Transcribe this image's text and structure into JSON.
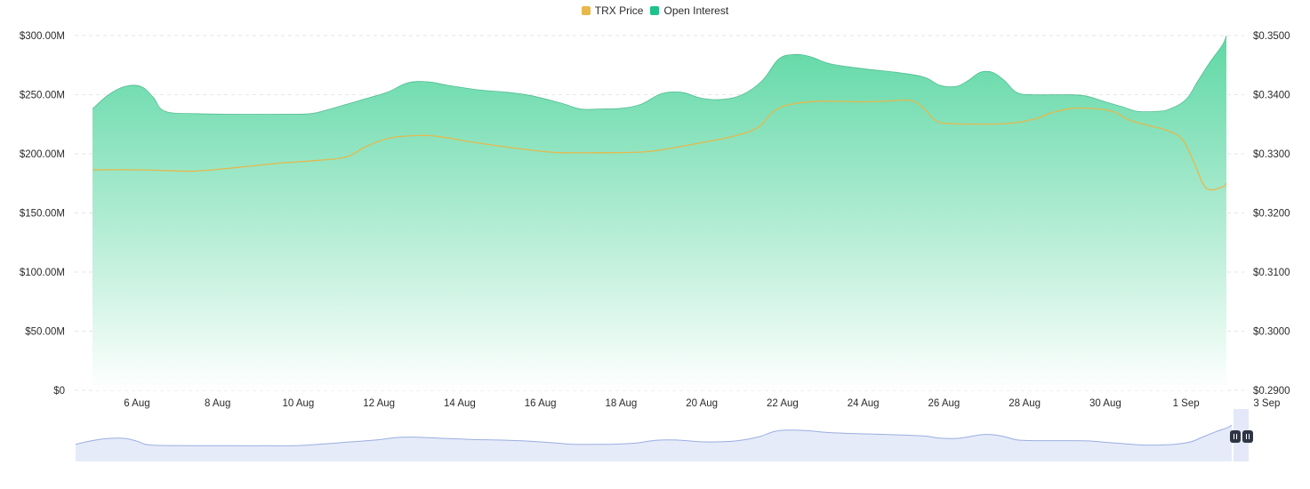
{
  "legend": {
    "items": [
      {
        "label": "TRX Price",
        "color": "#e8b84a"
      },
      {
        "label": "Open Interest",
        "color": "#1ec28b"
      }
    ]
  },
  "colors": {
    "oi_fill_top": "#56d6a0",
    "oi_fill_bottom": "#ffffff",
    "oi_line": "#1f9f6e",
    "price_line": "#e3b94e",
    "grid": "#e6e6e6",
    "nav_fill": "#e6ebf9",
    "nav_line": "#9aaee0",
    "nav_selection": "#dfe4f7",
    "nav_handle": "#2f3545"
  },
  "chart_data": {
    "type": "area",
    "title": "",
    "x_ticks": [
      "6 Aug",
      "8 Aug",
      "10 Aug",
      "12 Aug",
      "14 Aug",
      "16 Aug",
      "18 Aug",
      "20 Aug",
      "22 Aug",
      "24 Aug",
      "26 Aug",
      "28 Aug",
      "30 Aug",
      "1 Sep",
      "3 Sep"
    ],
    "x_range": [
      4.9,
      33.0
    ],
    "y_left": {
      "label": "",
      "range": [
        0,
        300000000
      ],
      "ticks": [
        "$0",
        "$50.00M",
        "$100.00M",
        "$150.00M",
        "$200.00M",
        "$250.00M",
        "$300.00M"
      ]
    },
    "y_right": {
      "label": "",
      "range": [
        0.29,
        0.35
      ],
      "ticks": [
        "$0.2900",
        "$0.3000",
        "$0.3100",
        "$0.3200",
        "$0.3300",
        "$0.3400",
        "$0.3500"
      ]
    },
    "grid": true,
    "legend_position": "top-center",
    "series": [
      {
        "name": "Open Interest",
        "axis": "left",
        "points": [
          [
            4.9,
            238
          ],
          [
            5.3,
            250
          ],
          [
            5.7,
            257
          ],
          [
            6.1,
            257
          ],
          [
            6.4,
            248
          ],
          [
            6.7,
            236
          ],
          [
            7.5,
            234
          ],
          [
            8.5,
            233.5
          ],
          [
            9.5,
            233.5
          ],
          [
            10.3,
            234
          ],
          [
            10.8,
            238
          ],
          [
            11.5,
            245
          ],
          [
            12.2,
            252
          ],
          [
            12.7,
            260
          ],
          [
            13.2,
            261
          ],
          [
            13.7,
            258
          ],
          [
            14.5,
            254
          ],
          [
            15.2,
            252
          ],
          [
            15.8,
            249
          ],
          [
            16.5,
            243
          ],
          [
            17.0,
            238
          ],
          [
            17.5,
            238
          ],
          [
            18.0,
            238.5
          ],
          [
            18.5,
            242
          ],
          [
            19.0,
            251
          ],
          [
            19.5,
            252
          ],
          [
            20.0,
            247
          ],
          [
            20.5,
            246
          ],
          [
            21.0,
            250
          ],
          [
            21.5,
            262
          ],
          [
            21.9,
            280
          ],
          [
            22.3,
            284
          ],
          [
            22.7,
            282
          ],
          [
            23.2,
            276
          ],
          [
            24.0,
            272
          ],
          [
            24.8,
            269
          ],
          [
            25.5,
            265
          ],
          [
            25.9,
            258
          ],
          [
            26.3,
            257
          ],
          [
            26.6,
            262
          ],
          [
            26.9,
            269
          ],
          [
            27.2,
            269
          ],
          [
            27.5,
            262
          ],
          [
            27.8,
            252
          ],
          [
            28.2,
            250
          ],
          [
            29.0,
            250
          ],
          [
            29.5,
            249
          ],
          [
            30.0,
            244
          ],
          [
            30.4,
            240
          ],
          [
            30.8,
            236
          ],
          [
            31.3,
            236
          ],
          [
            31.6,
            238
          ],
          [
            32.0,
            246
          ],
          [
            32.3,
            262
          ],
          [
            32.6,
            278
          ],
          [
            32.9,
            292
          ],
          [
            33.0,
            300
          ]
        ]
      },
      {
        "name": "TRX Price",
        "axis": "right",
        "points": [
          [
            4.9,
            0.3273
          ],
          [
            6.0,
            0.3273
          ],
          [
            7.0,
            0.3271
          ],
          [
            7.5,
            0.3271
          ],
          [
            8.5,
            0.3277
          ],
          [
            9.5,
            0.3284
          ],
          [
            10.5,
            0.3289
          ],
          [
            11.2,
            0.3295
          ],
          [
            11.7,
            0.3313
          ],
          [
            12.3,
            0.3327
          ],
          [
            13.0,
            0.3331
          ],
          [
            13.5,
            0.3329
          ],
          [
            14.2,
            0.3321
          ],
          [
            15.0,
            0.3313
          ],
          [
            15.8,
            0.3306
          ],
          [
            16.5,
            0.3302
          ],
          [
            17.5,
            0.3302
          ],
          [
            18.5,
            0.3303
          ],
          [
            19.2,
            0.3309
          ],
          [
            20.0,
            0.3319
          ],
          [
            20.8,
            0.333
          ],
          [
            21.4,
            0.3345
          ],
          [
            21.8,
            0.3373
          ],
          [
            22.3,
            0.3385
          ],
          [
            23.0,
            0.3389
          ],
          [
            24.0,
            0.3388
          ],
          [
            24.8,
            0.339
          ],
          [
            25.2,
            0.339
          ],
          [
            25.5,
            0.3377
          ],
          [
            25.8,
            0.3356
          ],
          [
            26.2,
            0.3351
          ],
          [
            27.5,
            0.3351
          ],
          [
            28.2,
            0.3358
          ],
          [
            28.7,
            0.337
          ],
          [
            29.2,
            0.3377
          ],
          [
            29.8,
            0.3376
          ],
          [
            30.2,
            0.3371
          ],
          [
            30.6,
            0.3357
          ],
          [
            31.0,
            0.3349
          ],
          [
            31.5,
            0.334
          ],
          [
            31.9,
            0.3325
          ],
          [
            32.2,
            0.3285
          ],
          [
            32.5,
            0.3242
          ],
          [
            32.9,
            0.3244
          ],
          [
            33.0,
            0.325
          ]
        ]
      }
    ]
  }
}
